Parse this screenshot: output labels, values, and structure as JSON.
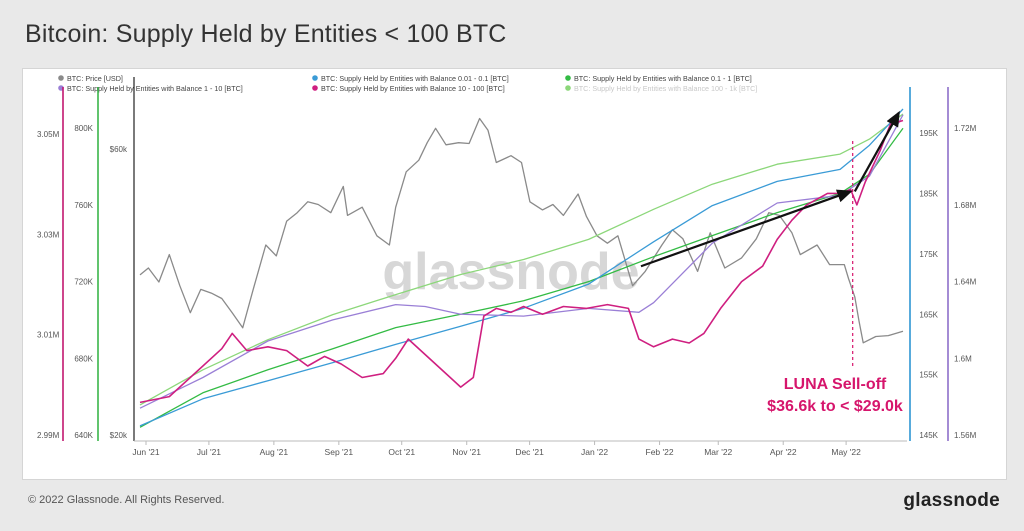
{
  "page": {
    "title": "Bitcoin: Supply Held by Entities < 100 BTC",
    "copyright": "© 2022 Glassnode. All Rights Reserved.",
    "brand": "glassnode",
    "watermark": "glassnode"
  },
  "chart_data": {
    "type": "line",
    "annotation": {
      "line1": "LUNA Sell-off",
      "line2": "$36.6k to < $29.0k",
      "color": "#d6156c",
      "date": "2022-05-07"
    },
    "arrows": [
      {
        "from": {
          "date": "2022-01-26",
          "value": 1.648
        },
        "to": {
          "date": "2022-05-06",
          "value": 1.687
        }
      },
      {
        "from": {
          "date": "2022-05-08",
          "value": 1.687
        },
        "to": {
          "date": "2022-05-29",
          "value": 1.728
        }
      }
    ],
    "x_axis": {
      "domain": [
        "2021-06-01",
        "2022-05-31"
      ],
      "ticks": [
        {
          "date": "2021-06-01",
          "label": "Jun '21"
        },
        {
          "date": "2021-07-01",
          "label": "Jul '21"
        },
        {
          "date": "2021-08-01",
          "label": "Aug '21"
        },
        {
          "date": "2021-09-01",
          "label": "Sep '21"
        },
        {
          "date": "2021-10-01",
          "label": "Oct '21"
        },
        {
          "date": "2021-11-01",
          "label": "Nov '21"
        },
        {
          "date": "2021-12-01",
          "label": "Dec '21"
        },
        {
          "date": "2022-01-01",
          "label": "Jan '22"
        },
        {
          "date": "2022-02-01",
          "label": "Feb '22"
        },
        {
          "date": "2022-03-01",
          "label": "Mar '22"
        },
        {
          "date": "2022-04-01",
          "label": "Apr '22"
        },
        {
          "date": "2022-05-01",
          "label": "May '22"
        }
      ]
    },
    "y_axes": [
      {
        "id": "a",
        "color": "#7f7f7f",
        "ticks": [
          "2.99M",
          "3.01M",
          "3.03M",
          "3.05M"
        ],
        "range": [
          2.99,
          3.055
        ]
      },
      {
        "id": "b",
        "color": "#c2176f",
        "ticks": [
          "640K",
          "680K",
          "720K",
          "760K",
          "800K"
        ],
        "range": [
          640,
          810
        ]
      },
      {
        "id": "c",
        "color": "#3ab54a",
        "ticks": [
          "$20k",
          "$60k"
        ],
        "scale": "log",
        "range": [
          20000,
          70000
        ]
      },
      {
        "id": "d",
        "color": "#2e96d3",
        "ticks": [
          "145K",
          "155K",
          "165K",
          "175K",
          "185K",
          "195K"
        ],
        "range": [
          145,
          199
        ]
      },
      {
        "id": "e",
        "color": "#8e6fc9",
        "ticks": [
          "1.56M",
          "1.6M",
          "1.64M",
          "1.68M",
          "1.72M"
        ],
        "range": [
          1.56,
          1.73
        ]
      }
    ],
    "series": [
      {
        "name": "BTC: Price [USD]",
        "color": "#8a8a8a",
        "axis": "c",
        "points": [
          [
            "2021-06-01",
            37000
          ],
          [
            "2021-06-05",
            38000
          ],
          [
            "2021-06-10",
            36000
          ],
          [
            "2021-06-15",
            40000
          ],
          [
            "2021-06-20",
            35500
          ],
          [
            "2021-06-25",
            32000
          ],
          [
            "2021-06-30",
            35000
          ],
          [
            "2021-07-05",
            34500
          ],
          [
            "2021-07-10",
            33800
          ],
          [
            "2021-07-15",
            32000
          ],
          [
            "2021-07-20",
            30200
          ],
          [
            "2021-07-25",
            35000
          ],
          [
            "2021-07-31",
            41500
          ],
          [
            "2021-08-05",
            39800
          ],
          [
            "2021-08-10",
            45500
          ],
          [
            "2021-08-15",
            47000
          ],
          [
            "2021-08-20",
            49000
          ],
          [
            "2021-08-25",
            48500
          ],
          [
            "2021-08-31",
            47000
          ],
          [
            "2021-09-06",
            52000
          ],
          [
            "2021-09-08",
            46500
          ],
          [
            "2021-09-15",
            48000
          ],
          [
            "2021-09-22",
            43000
          ],
          [
            "2021-09-28",
            41500
          ],
          [
            "2021-10-01",
            48000
          ],
          [
            "2021-10-06",
            55000
          ],
          [
            "2021-10-12",
            57500
          ],
          [
            "2021-10-16",
            61500
          ],
          [
            "2021-10-20",
            65000
          ],
          [
            "2021-10-25",
            61000
          ],
          [
            "2021-10-31",
            61500
          ],
          [
            "2021-11-05",
            61300
          ],
          [
            "2021-11-10",
            67500
          ],
          [
            "2021-11-14",
            64500
          ],
          [
            "2021-11-18",
            57000
          ],
          [
            "2021-11-25",
            58500
          ],
          [
            "2021-11-30",
            57000
          ],
          [
            "2021-12-04",
            49000
          ],
          [
            "2021-12-10",
            47500
          ],
          [
            "2021-12-15",
            48500
          ],
          [
            "2021-12-20",
            46500
          ],
          [
            "2021-12-27",
            50500
          ],
          [
            "2021-12-31",
            46300
          ],
          [
            "2022-01-05",
            43000
          ],
          [
            "2022-01-10",
            41800
          ],
          [
            "2022-01-15",
            43000
          ],
          [
            "2022-01-22",
            35500
          ],
          [
            "2022-01-28",
            37500
          ],
          [
            "2022-02-05",
            41500
          ],
          [
            "2022-02-10",
            44000
          ],
          [
            "2022-02-15",
            42500
          ],
          [
            "2022-02-22",
            37500
          ],
          [
            "2022-02-28",
            43500
          ],
          [
            "2022-03-07",
            38000
          ],
          [
            "2022-03-15",
            39500
          ],
          [
            "2022-03-22",
            42500
          ],
          [
            "2022-03-28",
            47000
          ],
          [
            "2022-04-02",
            46500
          ],
          [
            "2022-04-08",
            43500
          ],
          [
            "2022-04-12",
            40000
          ],
          [
            "2022-04-20",
            41500
          ],
          [
            "2022-04-26",
            38500
          ],
          [
            "2022-05-03",
            38500
          ],
          [
            "2022-05-05",
            36500
          ],
          [
            "2022-05-08",
            34000
          ],
          [
            "2022-05-10",
            31000
          ],
          [
            "2022-05-12",
            28500
          ],
          [
            "2022-05-18",
            29200
          ],
          [
            "2022-05-24",
            29300
          ],
          [
            "2022-05-31",
            29800
          ]
        ]
      },
      {
        "name": "BTC: Supply Held by Entities with Balance 0.01 - 0.1 [BTC]",
        "color": "#3a9bd6",
        "axis": "d",
        "points": [
          [
            "2021-06-01",
            146.5
          ],
          [
            "2021-07-01",
            151
          ],
          [
            "2021-08-01",
            154
          ],
          [
            "2021-09-01",
            157
          ],
          [
            "2021-10-01",
            160
          ],
          [
            "2021-11-01",
            163
          ],
          [
            "2021-12-01",
            166
          ],
          [
            "2022-01-01",
            170
          ],
          [
            "2022-02-01",
            177
          ],
          [
            "2022-03-01",
            183
          ],
          [
            "2022-04-01",
            187
          ],
          [
            "2022-05-01",
            189
          ],
          [
            "2022-05-15",
            193
          ],
          [
            "2022-05-31",
            199
          ]
        ]
      },
      {
        "name": "BTC: Supply Held by Entities with Balance 0.1 - 1 [BTC]",
        "color": "#33bb44",
        "axis": "b",
        "points": [
          [
            "2021-06-01",
            644
          ],
          [
            "2021-07-01",
            662
          ],
          [
            "2021-08-01",
            674
          ],
          [
            "2021-09-01",
            685
          ],
          [
            "2021-10-01",
            696
          ],
          [
            "2021-11-01",
            703
          ],
          [
            "2021-12-01",
            710
          ],
          [
            "2022-01-01",
            720
          ],
          [
            "2022-02-01",
            733
          ],
          [
            "2022-03-01",
            744
          ],
          [
            "2022-04-01",
            756
          ],
          [
            "2022-05-01",
            766
          ],
          [
            "2022-05-15",
            776
          ],
          [
            "2022-05-31",
            800
          ]
        ]
      },
      {
        "name": "BTC: Supply Held by Entities with Balance 1 - 10 [BTC]",
        "color": "#9a7fd6",
        "axis": "e",
        "points": [
          [
            "2021-06-01",
            1.574
          ],
          [
            "2021-07-01",
            1.59
          ],
          [
            "2021-08-01",
            1.609
          ],
          [
            "2021-09-01",
            1.62
          ],
          [
            "2021-10-01",
            1.628
          ],
          [
            "2021-10-15",
            1.627
          ],
          [
            "2021-11-01",
            1.623
          ],
          [
            "2021-12-01",
            1.622
          ],
          [
            "2022-01-01",
            1.626
          ],
          [
            "2022-01-25",
            1.624
          ],
          [
            "2022-02-01",
            1.629
          ],
          [
            "2022-03-01",
            1.66
          ],
          [
            "2022-04-01",
            1.681
          ],
          [
            "2022-05-01",
            1.685
          ],
          [
            "2022-05-15",
            1.695
          ],
          [
            "2022-05-31",
            1.727
          ]
        ]
      },
      {
        "name": "BTC: Supply Held by Entities with Balance 10 - 100 [BTC]",
        "color": "#cf1f80",
        "axis": "b",
        "points": [
          [
            "2021-06-01",
            657
          ],
          [
            "2021-06-15",
            660
          ],
          [
            "2021-06-25",
            670
          ],
          [
            "2021-07-10",
            685
          ],
          [
            "2021-07-15",
            693
          ],
          [
            "2021-07-22",
            684
          ],
          [
            "2021-08-01",
            686
          ],
          [
            "2021-08-10",
            684
          ],
          [
            "2021-08-20",
            676
          ],
          [
            "2021-08-28",
            681
          ],
          [
            "2021-09-05",
            677
          ],
          [
            "2021-09-15",
            670
          ],
          [
            "2021-09-25",
            672
          ],
          [
            "2021-10-01",
            680
          ],
          [
            "2021-10-07",
            690
          ],
          [
            "2021-10-15",
            682
          ],
          [
            "2021-10-25",
            672
          ],
          [
            "2021-11-01",
            665
          ],
          [
            "2021-11-07",
            670
          ],
          [
            "2021-11-12",
            702
          ],
          [
            "2021-11-18",
            706
          ],
          [
            "2021-11-25",
            704
          ],
          [
            "2021-12-01",
            707
          ],
          [
            "2021-12-10",
            703
          ],
          [
            "2021-12-20",
            707
          ],
          [
            "2021-12-31",
            706
          ],
          [
            "2022-01-10",
            708
          ],
          [
            "2022-01-20",
            706
          ],
          [
            "2022-01-25",
            690
          ],
          [
            "2022-02-01",
            686
          ],
          [
            "2022-02-10",
            690
          ],
          [
            "2022-02-18",
            688
          ],
          [
            "2022-02-25",
            693
          ],
          [
            "2022-03-05",
            706
          ],
          [
            "2022-03-15",
            720
          ],
          [
            "2022-03-25",
            728
          ],
          [
            "2022-04-01",
            742
          ],
          [
            "2022-04-08",
            752
          ],
          [
            "2022-04-15",
            760
          ],
          [
            "2022-04-25",
            766
          ],
          [
            "2022-05-01",
            766
          ],
          [
            "2022-05-06",
            768
          ],
          [
            "2022-05-09",
            760
          ],
          [
            "2022-05-13",
            772
          ],
          [
            "2022-05-20",
            788
          ],
          [
            "2022-05-25",
            802
          ],
          [
            "2022-05-31",
            804
          ]
        ]
      },
      {
        "name": "BTC: Supply Held by Entities with Balance 100 - 1k [BTC]",
        "color": "#8cd77a",
        "axis": "a",
        "points": [
          [
            "2021-06-01",
            2.996
          ],
          [
            "2021-07-01",
            3.003
          ],
          [
            "2021-08-01",
            3.009
          ],
          [
            "2021-09-01",
            3.014
          ],
          [
            "2021-10-01",
            3.018
          ],
          [
            "2021-11-01",
            3.022
          ],
          [
            "2021-12-01",
            3.025
          ],
          [
            "2022-01-01",
            3.029
          ],
          [
            "2022-02-01",
            3.035
          ],
          [
            "2022-03-01",
            3.04
          ],
          [
            "2022-04-01",
            3.044
          ],
          [
            "2022-05-01",
            3.046
          ],
          [
            "2022-05-15",
            3.049
          ],
          [
            "2022-05-31",
            3.054
          ]
        ]
      }
    ]
  }
}
